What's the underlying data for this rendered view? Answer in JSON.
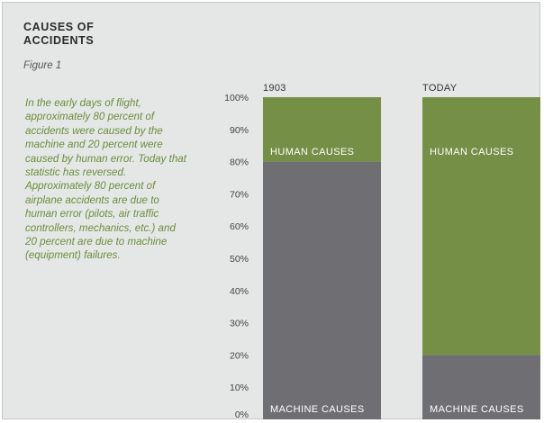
{
  "title": "CAUSES OF ACCIDENTS",
  "figure_label": "Figure 1",
  "description": "In the early days of flight, approximately 80 percent of accidents were caused by the machine and 20 percent were caused by human error. Today that statistic has reversed. Approximately 80 percent of airplane accidents are due to human error (pilots, air traffic controllers, mechanics, etc.) and 20 percent are due to machine (equipment) failures.",
  "colors": {
    "machine": "#6f6e73",
    "human": "#758f47",
    "panel_bg": "#e5e6e6",
    "tick_text": "#444444",
    "bar_label_text": "#ffffff"
  },
  "chart_data": {
    "type": "bar",
    "stacked": true,
    "categories": [
      "1903",
      "TODAY"
    ],
    "series": [
      {
        "name": "MACHINE CAUSES",
        "values": [
          80,
          20
        ]
      },
      {
        "name": "HUMAN CAUSES",
        "values": [
          20,
          80
        ]
      }
    ],
    "ylim": [
      0,
      100
    ],
    "y_ticks": [
      "0%",
      "10%",
      "20%",
      "30%",
      "40%",
      "50%",
      "60%",
      "70%",
      "80%",
      "90%",
      "100%"
    ],
    "grid": false,
    "legend": "none"
  }
}
